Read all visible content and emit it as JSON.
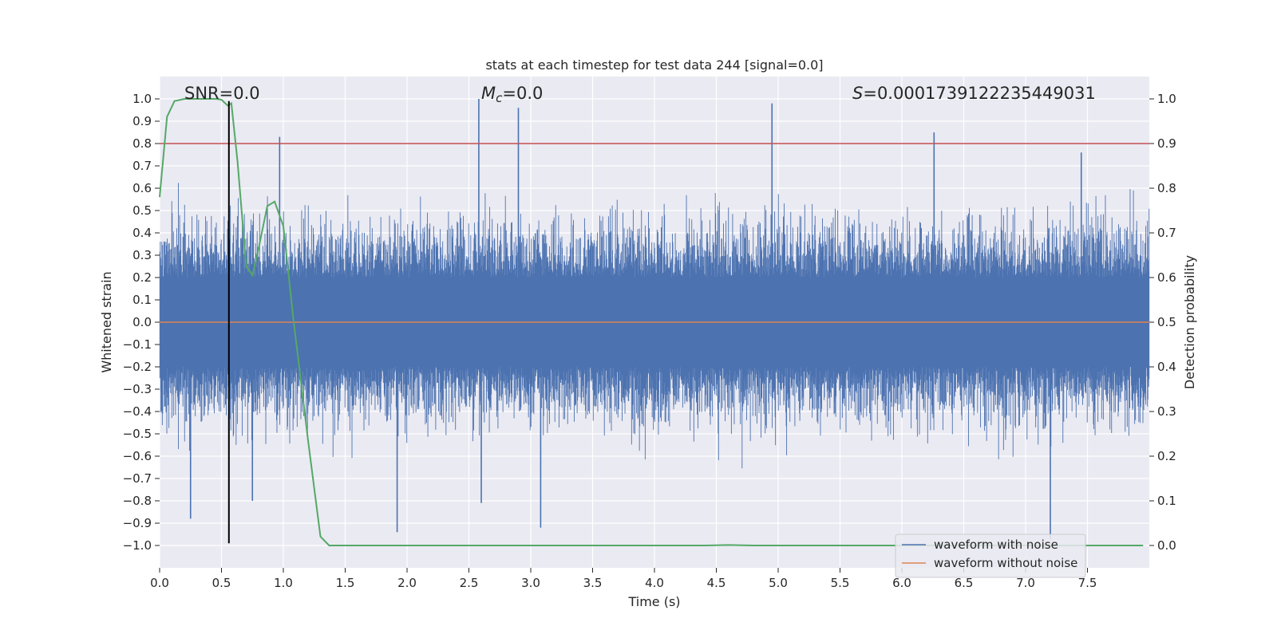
{
  "chart_data": {
    "type": "line",
    "title": "stats at each timestep for test data 244 [signal=0.0]",
    "xlabel": "Time (s)",
    "ylabel": "Whitened strain",
    "ylabel_right": "Detection probability",
    "xlim": [
      0.0,
      8.0
    ],
    "ylim": [
      -1.1,
      1.1
    ],
    "ylim_right": [
      -0.05,
      1.05
    ],
    "x_ticks": [
      0.0,
      0.5,
      1.0,
      1.5,
      2.0,
      2.5,
      3.0,
      3.5,
      4.0,
      4.5,
      5.0,
      5.5,
      6.0,
      6.5,
      7.0,
      7.5
    ],
    "x_tick_labels": [
      "0.0",
      "0.5",
      "1.0",
      "1.5",
      "2.0",
      "2.5",
      "3.0",
      "3.5",
      "4.0",
      "4.5",
      "5.0",
      "5.5",
      "6.0",
      "6.5",
      "7.0",
      "7.5"
    ],
    "y_ticks": [
      1.0,
      0.9,
      0.8,
      0.7,
      0.6,
      0.5,
      0.4,
      0.3,
      0.2,
      0.1,
      0.0,
      -0.1,
      -0.2,
      -0.3,
      -0.4,
      -0.5,
      -0.6,
      -0.7,
      -0.8,
      -0.9,
      -1.0
    ],
    "y_tick_labels": [
      "1.0",
      "0.9",
      "0.8",
      "0.7",
      "0.6",
      "0.5",
      "0.4",
      "0.3",
      "0.2",
      "0.1",
      "0.0",
      "−0.1",
      "−0.2",
      "−0.3",
      "−0.4",
      "−0.5",
      "−0.6",
      "−0.7",
      "−0.8",
      "−0.9",
      "−1.0"
    ],
    "y_right_ticks": [
      1.0,
      0.9,
      0.8,
      0.7,
      0.6,
      0.5,
      0.4,
      0.3,
      0.2,
      0.1,
      0.0
    ],
    "y_right_tick_labels": [
      "1.0",
      "0.9",
      "0.8",
      "0.7",
      "0.6",
      "0.5",
      "0.4",
      "0.3",
      "0.2",
      "0.1",
      "0.0"
    ],
    "annotations": {
      "snr": "SNR=0.0",
      "mc_symbol": "M",
      "mc_sub": "c",
      "mc_value": "=0.0",
      "s_symbol": "S",
      "s_value": "=0.0001739122235449031"
    },
    "threshold": {
      "value": 0.8,
      "color": "#c44e52"
    },
    "marker_line": {
      "x": 0.56,
      "y_range": [
        -0.99,
        0.99
      ],
      "color": "#000000"
    },
    "series": [
      {
        "name": "waveform with noise",
        "color": "#4c72b0",
        "style": "dense noise",
        "envelope_typical": [
          -0.45,
          0.45
        ],
        "peaks": [
          {
            "x": 0.97,
            "y": 0.83
          },
          {
            "x": 2.58,
            "y": 1.0
          },
          {
            "x": 2.9,
            "y": 0.96
          },
          {
            "x": 4.95,
            "y": 0.98
          },
          {
            "x": 6.26,
            "y": 0.85
          },
          {
            "x": 7.45,
            "y": 0.76
          },
          {
            "x": 0.25,
            "y": -0.88
          },
          {
            "x": 1.92,
            "y": -0.94
          },
          {
            "x": 3.08,
            "y": -0.92
          },
          {
            "x": 7.2,
            "y": -0.97
          },
          {
            "x": 0.75,
            "y": -0.8
          },
          {
            "x": 2.6,
            "y": -0.81
          }
        ]
      },
      {
        "name": "waveform without noise",
        "color": "#dd8452",
        "x": [
          0.0,
          8.0
        ],
        "y": [
          0.0,
          0.0
        ]
      },
      {
        "name": "detection probability",
        "color": "#55a868",
        "axis": "right",
        "x": [
          0.0,
          0.06,
          0.12,
          0.2,
          0.3,
          0.4,
          0.46,
          0.5,
          0.55,
          0.58,
          0.63,
          0.7,
          0.75,
          0.8,
          0.87,
          0.93,
          1.0,
          1.08,
          1.2,
          1.3,
          1.37,
          1.45,
          3.0,
          4.4,
          4.6,
          4.8,
          6.0,
          7.0,
          7.95
        ],
        "y": [
          0.78,
          0.96,
          0.995,
          1.0,
          1.0,
          1.0,
          1.0,
          0.998,
          0.985,
          0.99,
          0.86,
          0.625,
          0.605,
          0.665,
          0.76,
          0.77,
          0.715,
          0.51,
          0.235,
          0.02,
          0.0,
          0.0,
          0.0,
          0.0,
          0.001,
          0.0,
          0.0,
          0.0,
          0.0
        ]
      }
    ],
    "legend": {
      "position": "lower-right",
      "entries": [
        {
          "label": "waveform with noise",
          "color": "#4c72b0"
        },
        {
          "label": "waveform without noise",
          "color": "#dd8452"
        }
      ]
    },
    "style": {
      "background": "#eaeaf2",
      "grid_color": "#ffffff",
      "grid": true
    }
  }
}
